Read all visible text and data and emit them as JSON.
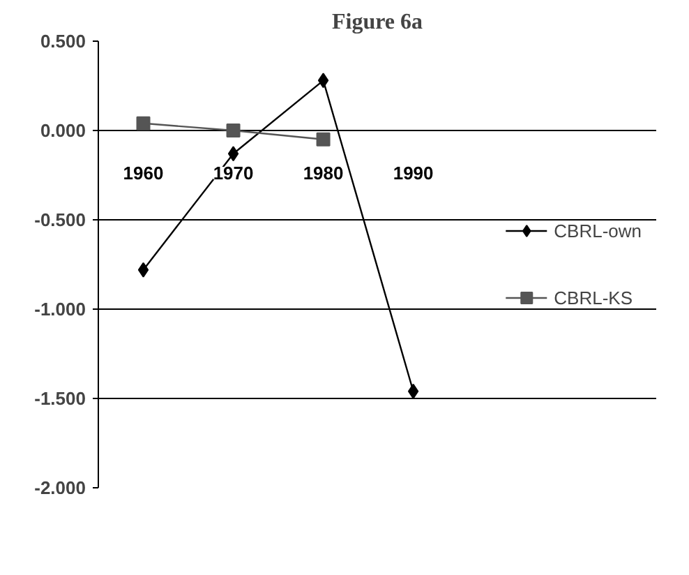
{
  "chart_data": {
    "type": "line",
    "title": "Figure 6a",
    "categories": [
      "1960",
      "1970",
      "1980",
      "1990"
    ],
    "series": [
      {
        "name": "CBRL-own",
        "color": "#000000",
        "marker": "diamond",
        "values": [
          -0.78,
          -0.13,
          0.28,
          -1.46
        ]
      },
      {
        "name": "CBRL-KS",
        "color": "#555555",
        "marker": "square",
        "values": [
          0.04,
          0.0,
          -0.05,
          null
        ]
      }
    ],
    "ylim": [
      -2.0,
      0.5
    ],
    "yticks": [
      {
        "value": 0.5,
        "label": "0.500"
      },
      {
        "value": 0.0,
        "label": "0.000"
      },
      {
        "value": -0.5,
        "label": "-0.500"
      },
      {
        "value": -1.0,
        "label": "-1.000"
      },
      {
        "value": -1.5,
        "label": "-1.500"
      },
      {
        "value": -2.0,
        "label": "-2.000"
      }
    ],
    "grid": "y",
    "legend": "right",
    "line_style": "solid"
  }
}
